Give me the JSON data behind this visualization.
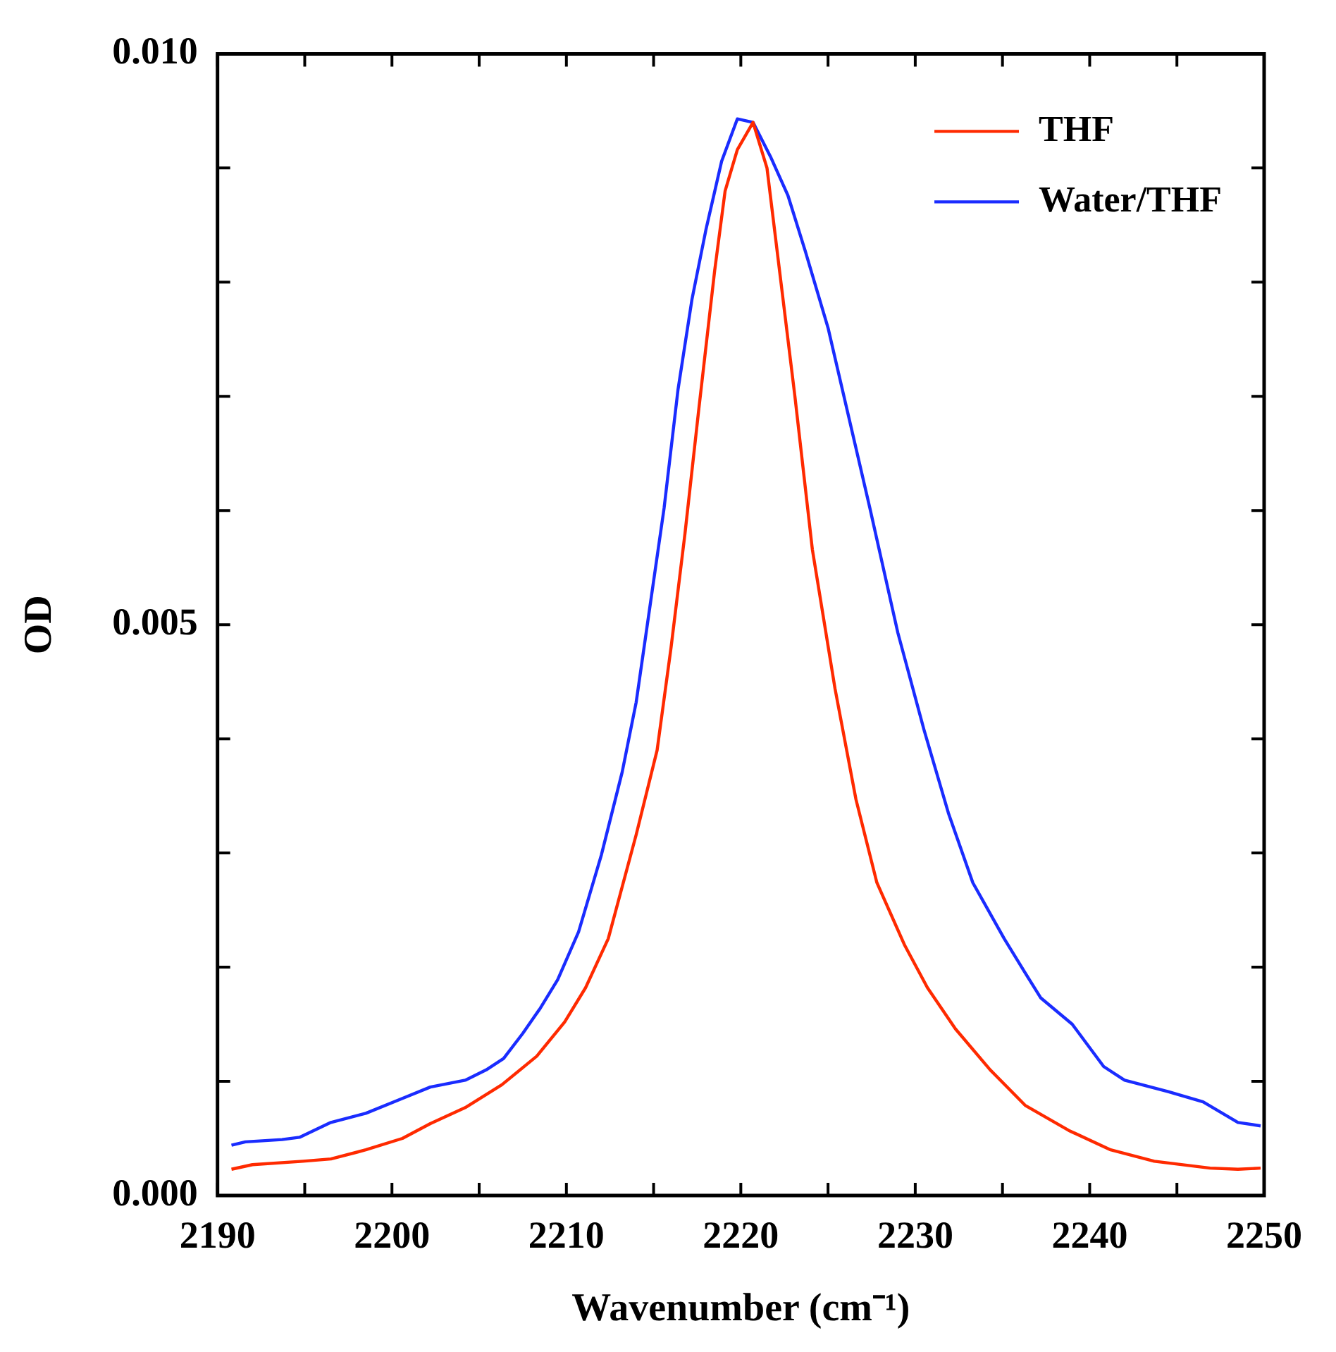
{
  "chart_data": {
    "type": "line",
    "xlabel": "Wavenumber (cm⁻¹)",
    "ylabel": "OD",
    "xlim": [
      2190,
      2250
    ],
    "ylim": [
      0,
      0.01
    ],
    "xticks": [
      2190,
      {
        "value": 2195,
        "label": null
      },
      2200,
      {
        "value": 2205,
        "label": null
      },
      2210,
      {
        "value": 2215,
        "label": null
      },
      2220,
      {
        "value": 2225,
        "label": null
      },
      2230,
      {
        "value": 2235,
        "label": null
      },
      2240,
      {
        "value": 2245,
        "label": null
      },
      2250
    ],
    "yticks": [
      {
        "value": 0,
        "label": "0.000"
      },
      {
        "value": 0.001,
        "label": null
      },
      {
        "value": 0.002,
        "label": null
      },
      {
        "value": 0.003,
        "label": null
      },
      {
        "value": 0.004,
        "label": null
      },
      {
        "value": 0.005,
        "label": "0.005"
      },
      {
        "value": 0.006,
        "label": null
      },
      {
        "value": 0.007,
        "label": null
      },
      {
        "value": 0.008,
        "label": null
      },
      {
        "value": 0.009,
        "label": null
      },
      {
        "value": 0.01,
        "label": "0.010"
      }
    ],
    "grid": false,
    "legend": "top right",
    "marker": "none",
    "line_style": "solid",
    "series": [
      {
        "name": "THF",
        "color": "#ff2a00",
        "x": [
          2190.8,
          2192,
          2194.9,
          2196.5,
          2198.5,
          2200.6,
          2202.2,
          2204.2,
          2206.3,
          2208.3,
          2209.9,
          2211.1,
          2212.4,
          2214,
          2215.2,
          2216,
          2216.8,
          2217.6,
          2218.5,
          2219.1,
          2219.8,
          2220.7,
          2221.5,
          2222.3,
          2223.1,
          2224.1,
          2225.4,
          2226.6,
          2227.8,
          2229.4,
          2230.7,
          2232.3,
          2234.3,
          2236.3,
          2238.8,
          2241.2,
          2243.7,
          2246.9,
          2248.5,
          2249.8
        ],
        "values": [
          0.00023,
          0.00027,
          0.0003,
          0.00032,
          0.0004,
          0.0005,
          0.00063,
          0.00077,
          0.00097,
          0.00122,
          0.00152,
          0.00182,
          0.00225,
          0.00316,
          0.0039,
          0.0048,
          0.0058,
          0.0069,
          0.0081,
          0.0088,
          0.00916,
          0.0094,
          0.009,
          0.008,
          0.007,
          0.00566,
          0.00444,
          0.00347,
          0.00274,
          0.00219,
          0.00182,
          0.00146,
          0.0011,
          0.00079,
          0.00057,
          0.0004,
          0.0003,
          0.00024,
          0.00023,
          0.00024
        ]
      },
      {
        "name": "Water/THF",
        "color": "#1a2cff",
        "x": [
          2190.8,
          2191.6,
          2193.7,
          2194.7,
          2196.5,
          2198.5,
          2200.6,
          2202.2,
          2204.2,
          2205.4,
          2206.4,
          2207.5,
          2208.5,
          2209.5,
          2210.7,
          2212,
          2213.2,
          2214,
          2214.8,
          2215.6,
          2216.4,
          2217.2,
          2218,
          2218.9,
          2219.8,
          2220.7,
          2221.7,
          2222.7,
          2223.7,
          2225,
          2226.2,
          2227.4,
          2229,
          2230.5,
          2231.9,
          2233.3,
          2235.1,
          2236.3,
          2237.2,
          2239,
          2240.8,
          2242,
          2244.5,
          2246.5,
          2248.5,
          2249.8
        ],
        "values": [
          0.00044,
          0.00047,
          0.00049,
          0.00051,
          0.00064,
          0.00072,
          0.00085,
          0.00095,
          0.00101,
          0.0011,
          0.0012,
          0.00142,
          0.00164,
          0.00189,
          0.00231,
          0.00298,
          0.00371,
          0.00432,
          0.00517,
          0.00602,
          0.00706,
          0.00785,
          0.00846,
          0.00906,
          0.00943,
          0.0094,
          0.0091,
          0.00876,
          0.00827,
          0.0076,
          0.00681,
          0.00602,
          0.00493,
          0.00408,
          0.00335,
          0.00274,
          0.00225,
          0.00195,
          0.00173,
          0.0015,
          0.00113,
          0.00101,
          0.00091,
          0.00082,
          0.00064,
          0.00061
        ]
      }
    ]
  }
}
